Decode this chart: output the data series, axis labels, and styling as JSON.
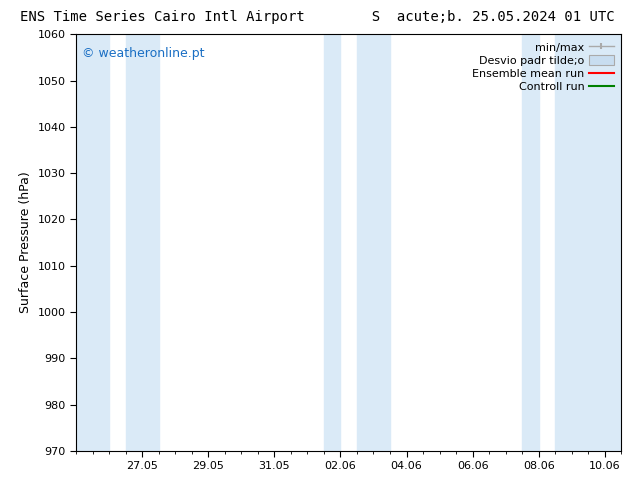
{
  "title": "ENS Time Series Cairo Intl Airport        S  acute;b. 25.05.2024 01 UTC",
  "ylabel": "Surface Pressure (hPa)",
  "ylim": [
    970,
    1060
  ],
  "yticks": [
    970,
    980,
    990,
    1000,
    1010,
    1020,
    1030,
    1040,
    1050,
    1060
  ],
  "xlim_start": 0.0,
  "xlim_end": 16.5,
  "xtick_labels": [
    "27.05",
    "29.05",
    "31.05",
    "02.06",
    "04.06",
    "06.06",
    "08.06",
    "10.06"
  ],
  "xtick_positions": [
    2,
    4,
    6,
    8,
    10,
    12,
    14,
    16
  ],
  "watermark": "© weatheronline.pt",
  "watermark_color": "#1a6fc4",
  "bg_color": "#ffffff",
  "plot_bg_color": "#ffffff",
  "shaded_bands": [
    {
      "x_start": 0.0,
      "x_end": 1.0,
      "color": "#daeaf7"
    },
    {
      "x_start": 1.5,
      "x_end": 2.5,
      "color": "#daeaf7"
    },
    {
      "x_start": 7.5,
      "x_end": 8.0,
      "color": "#daeaf7"
    },
    {
      "x_start": 8.5,
      "x_end": 9.5,
      "color": "#daeaf7"
    },
    {
      "x_start": 13.5,
      "x_end": 14.0,
      "color": "#daeaf7"
    },
    {
      "x_start": 14.5,
      "x_end": 16.5,
      "color": "#daeaf7"
    }
  ],
  "legend_labels": [
    "min/max",
    "Desvio padr tilde;o",
    "Ensemble mean run",
    "Controll run"
  ],
  "legend_colors": [
    "#aaaaaa",
    "#c8ddf0",
    "#ff0000",
    "#008000"
  ],
  "font_size_title": 10,
  "font_size_axis": 9,
  "font_size_tick": 8,
  "font_size_legend": 8,
  "font_size_watermark": 9,
  "tick_color": "#000000",
  "spine_color": "#000000"
}
